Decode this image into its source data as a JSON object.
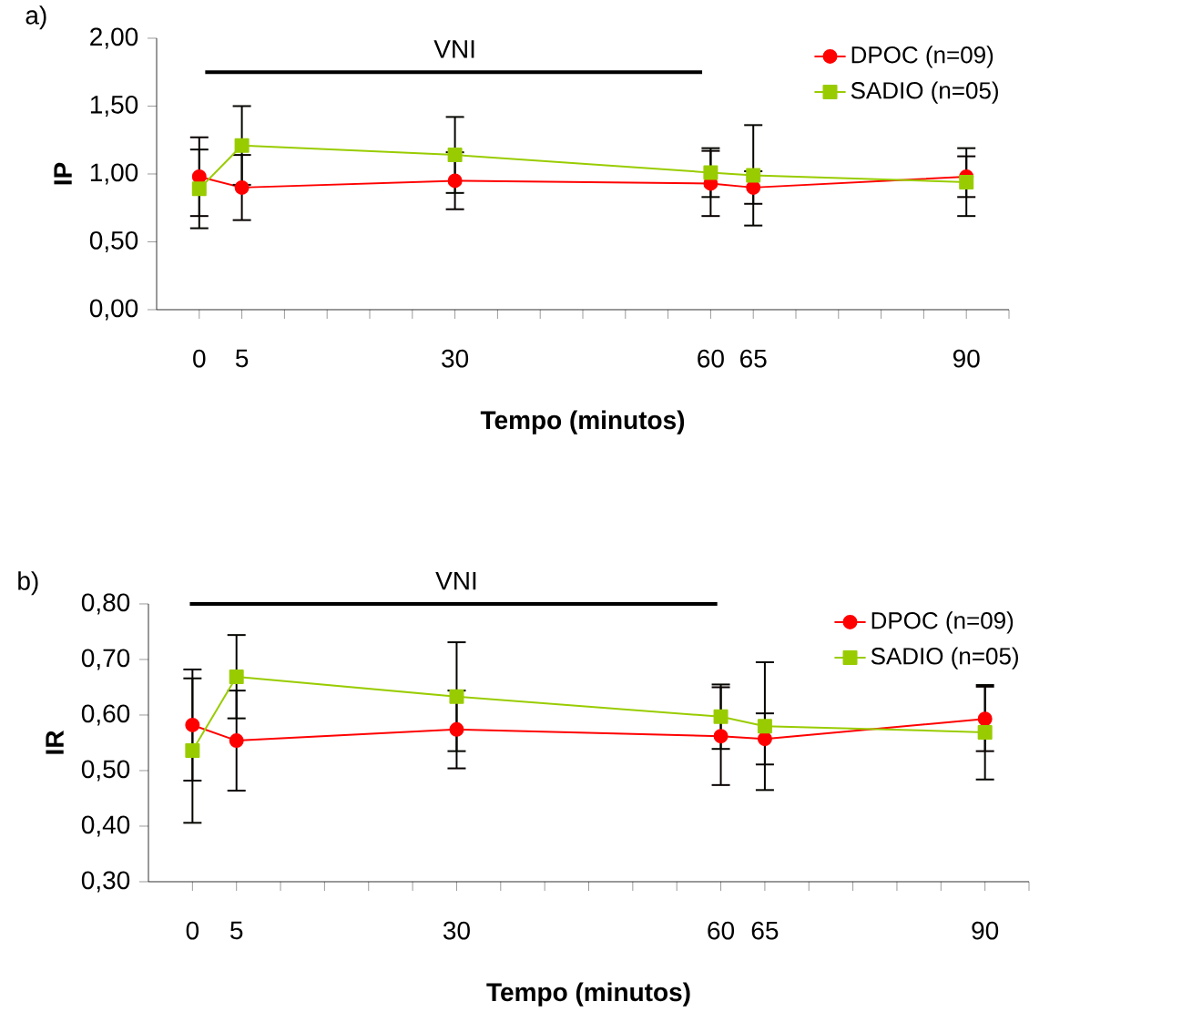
{
  "chart_data": [
    {
      "type": "line",
      "title": "a)",
      "xlabel": "Tempo (minutos)",
      "ylabel": "IP",
      "x": [
        0,
        5,
        30,
        60,
        65,
        90
      ],
      "series": [
        {
          "name": "DPOC (n=09)",
          "color": "#ff0000",
          "marker": "circle",
          "values": [
            0.98,
            0.9,
            0.95,
            0.93,
            0.9,
            0.98
          ],
          "errors": [
            0.29,
            0.24,
            0.21,
            0.24,
            0.12,
            0.15
          ]
        },
        {
          "name": "SADIO (n=05)",
          "color": "#99cc00",
          "marker": "square",
          "values": [
            0.89,
            1.21,
            1.14,
            1.01,
            0.99,
            0.94
          ],
          "errors": [
            0.29,
            0.29,
            0.28,
            0.18,
            0.37,
            0.25
          ]
        },
        {
          "color": "#000000",
          "marker": "none",
          "x": [
            0.7,
            59
          ],
          "values": [
            1.75,
            1.75
          ]
        }
      ],
      "annotations": [
        {
          "text": "VNI",
          "x": 30,
          "y": 1.75
        }
      ],
      "xlim": [
        -5,
        95
      ],
      "xticks": [
        0,
        5,
        {
          "value": 10,
          "label": null
        },
        {
          "value": 15,
          "label": null
        },
        {
          "value": 20,
          "label": null
        },
        {
          "value": 25,
          "label": null
        },
        30,
        {
          "value": 35,
          "label": null
        },
        {
          "value": 40,
          "label": null
        },
        {
          "value": 45,
          "label": null
        },
        {
          "value": 50,
          "label": null
        },
        {
          "value": 55,
          "label": null
        },
        60,
        65,
        {
          "value": 70,
          "label": null
        },
        {
          "value": 75,
          "label": null
        },
        {
          "value": 80,
          "label": null
        },
        {
          "value": 85,
          "label": null
        },
        90,
        {
          "value": 95,
          "label": null
        }
      ],
      "ylim": [
        0,
        2
      ],
      "yticks": [
        {
          "value": 0,
          "label": "0,00"
        },
        {
          "value": 0.5,
          "label": "0,50"
        },
        {
          "value": 1,
          "label": "1,00"
        },
        {
          "value": 1.5,
          "label": "1,50"
        },
        {
          "value": 2,
          "label": "2,00"
        }
      ],
      "legend": "top right",
      "grid": false
    },
    {
      "type": "line",
      "title": "b)",
      "xlabel": "Tempo (minutos)",
      "ylabel": "IR",
      "x": [
        0,
        5,
        30,
        60,
        65,
        90
      ],
      "series": [
        {
          "name": "DPOC (n=09)",
          "color": "#ff0000",
          "marker": "circle",
          "values": [
            0.582,
            0.554,
            0.574,
            0.562,
            0.557,
            0.593
          ],
          "errors": [
            0.1,
            0.09,
            0.07,
            0.088,
            0.046,
            0.058
          ]
        },
        {
          "name": "SADIO (n=05)",
          "color": "#99cc00",
          "marker": "square",
          "values": [
            0.536,
            0.669,
            0.633,
            0.597,
            0.58,
            0.569
          ],
          "errors": [
            0.13,
            0.075,
            0.098,
            0.058,
            0.115,
            0.085
          ]
        },
        {
          "color": "#000000",
          "marker": "none",
          "x": [
            -0.3,
            59.6
          ],
          "values": [
            0.8,
            0.8
          ]
        }
      ],
      "annotations": [
        {
          "text": "VNI",
          "x": 30,
          "y": 0.8
        }
      ],
      "xlim": [
        -5,
        95
      ],
      "xticks": [
        0,
        5,
        {
          "value": 10,
          "label": null
        },
        {
          "value": 15,
          "label": null
        },
        {
          "value": 20,
          "label": null
        },
        {
          "value": 25,
          "label": null
        },
        30,
        {
          "value": 35,
          "label": null
        },
        {
          "value": 40,
          "label": null
        },
        {
          "value": 45,
          "label": null
        },
        {
          "value": 50,
          "label": null
        },
        {
          "value": 55,
          "label": null
        },
        60,
        65,
        {
          "value": 70,
          "label": null
        },
        {
          "value": 75,
          "label": null
        },
        {
          "value": 80,
          "label": null
        },
        {
          "value": 85,
          "label": null
        },
        90,
        {
          "value": 95,
          "label": null
        }
      ],
      "ylim": [
        0.3,
        0.8
      ],
      "yticks": [
        {
          "value": 0.3,
          "label": "0,30"
        },
        {
          "value": 0.4,
          "label": "0,40"
        },
        {
          "value": 0.5,
          "label": "0,50"
        },
        {
          "value": 0.6,
          "label": "0,60"
        },
        {
          "value": 0.7,
          "label": "0,70"
        },
        {
          "value": 0.8,
          "label": "0,80"
        }
      ],
      "legend": "top right",
      "grid": false
    }
  ]
}
